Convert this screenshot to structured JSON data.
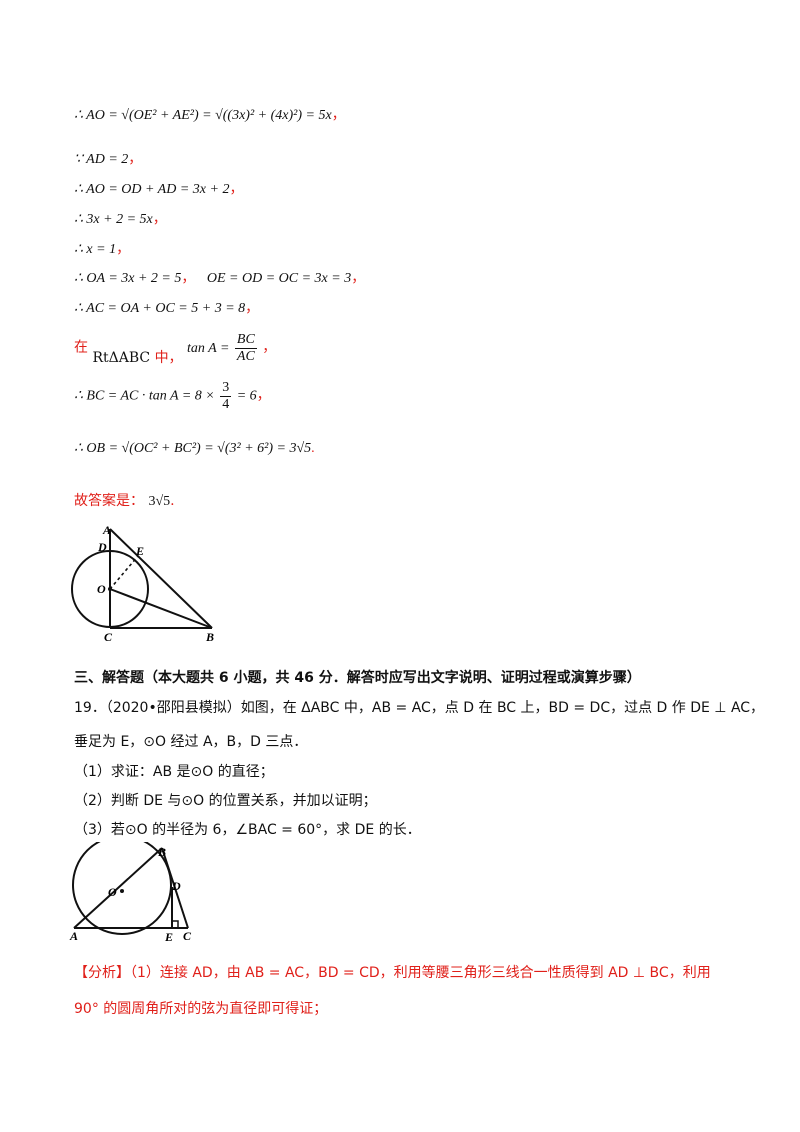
{
  "solution": {
    "l1": "∴ AO = √(OE² + AE²) = √((3x)² + (4x)²) = 5x",
    "l1_comma": "，",
    "l2": "∵ AD = 2",
    "l3": "∴ AO = OD + AD = 3x + 2",
    "l4": "∴ 3x + 2 = 5x",
    "l5": "∴ x = 1",
    "l6a": "∴ OA = 3x + 2 = 5",
    "l6b": "OE = OD = OC = 3x = 3",
    "l7": "∴ AC = OA + OC = 5 + 3 = 8",
    "l8_prefix": "在",
    "l8_tri": "RtΔABC",
    "l8_mid": "中，",
    "l8_tan": "tan A =",
    "l8_num": "BC",
    "l8_den": "AC",
    "l9": "∴ BC = AC · tan A = 8 ×",
    "l9_num": "3",
    "l9_den": "4",
    "l9_end": "= 6",
    "l10": "∴ OB = √(OC² + BC²) = √(3² + 6²) = 3√5",
    "answer_label": "故答案是：",
    "answer_value": "3√5",
    "comma": "，",
    "period": "."
  },
  "figure1": {
    "labels": [
      "A",
      "D",
      "E",
      "O",
      "C",
      "B"
    ]
  },
  "section": {
    "heading": "三、解答题（本大题共 6 小题，共 46 分．解答时应写出文字说明、证明过程或演算步骤）"
  },
  "problem19": {
    "stem": "19．（2020•邵阳县模拟）如图，在 ΔABC 中，AB = AC，点 D 在 BC 上，BD = DC，过点 D 作 DE ⊥ AC，",
    "stem2": "垂足为 E，⊙O 经过 A，B，D 三点．",
    "q1": "（1）求证：AB 是⊙O 的直径；",
    "q2": "（2）判断 DE 与⊙O 的位置关系，并加以证明；",
    "q3": "（3）若⊙O 的半径为 6，∠BAC = 60°，求 DE 的长．"
  },
  "figure2": {
    "labels": [
      "B",
      "O",
      "D",
      "A",
      "E",
      "C"
    ]
  },
  "analysis": {
    "tag": "【分析】",
    "line1": "（1）连接 AD，由 AB = AC，BD = CD，利用等腰三角形三线合一性质得到 AD ⊥ BC，利用",
    "line2": "90° 的圆周角所对的弦为直径即可得证；"
  }
}
